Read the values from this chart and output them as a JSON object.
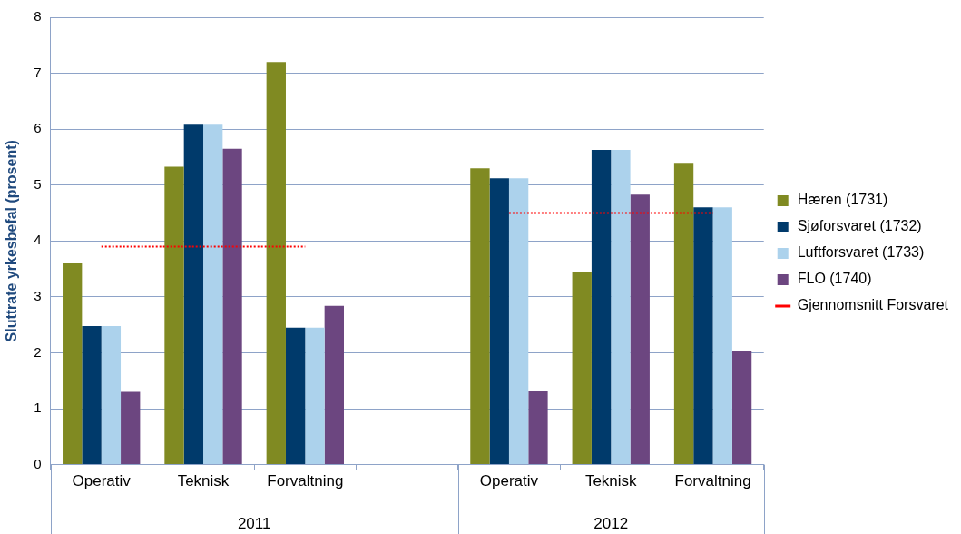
{
  "chart_data": {
    "type": "bar",
    "ylabel": "Sluttrate yrkesbefal (prosent)",
    "categories": [
      "Operativ",
      "Teknisk",
      "Forvaltning",
      null,
      "Operativ",
      "Teknisk",
      "Forvaltning"
    ],
    "annotations": [
      "2011",
      "2012"
    ],
    "ylim": [
      0,
      8
    ],
    "yticks": [
      0,
      1,
      2,
      3,
      4,
      5,
      6,
      7,
      8
    ],
    "grid": "y",
    "legend": "right",
    "series": [
      {
        "name": "Hæren (1731)",
        "color": "#808a22",
        "values": [
          3.6,
          5.33,
          7.2,
          null,
          5.3,
          3.45,
          5.38
        ]
      },
      {
        "name": "Sjøforsvaret (1732)",
        "color": "#003a6b",
        "values": [
          2.48,
          6.08,
          2.45,
          null,
          5.12,
          5.63,
          4.6
        ]
      },
      {
        "name": "Luftforsvaret (1733)",
        "color": "#acd2ec",
        "values": [
          2.48,
          6.08,
          2.45,
          null,
          5.12,
          5.63,
          4.6
        ]
      },
      {
        "name": "FLO (1740)",
        "color": "#6c4680",
        "values": [
          1.3,
          5.65,
          2.84,
          null,
          1.32,
          4.83,
          2.04
        ]
      },
      {
        "name": "Gjennomsnitt Forsvaret",
        "type": "line",
        "color": "#ff0000",
        "line_style": "dotted",
        "marker": "none",
        "values": [
          3.9,
          3.9,
          3.9,
          null,
          4.5,
          4.5,
          4.5
        ]
      }
    ]
  }
}
